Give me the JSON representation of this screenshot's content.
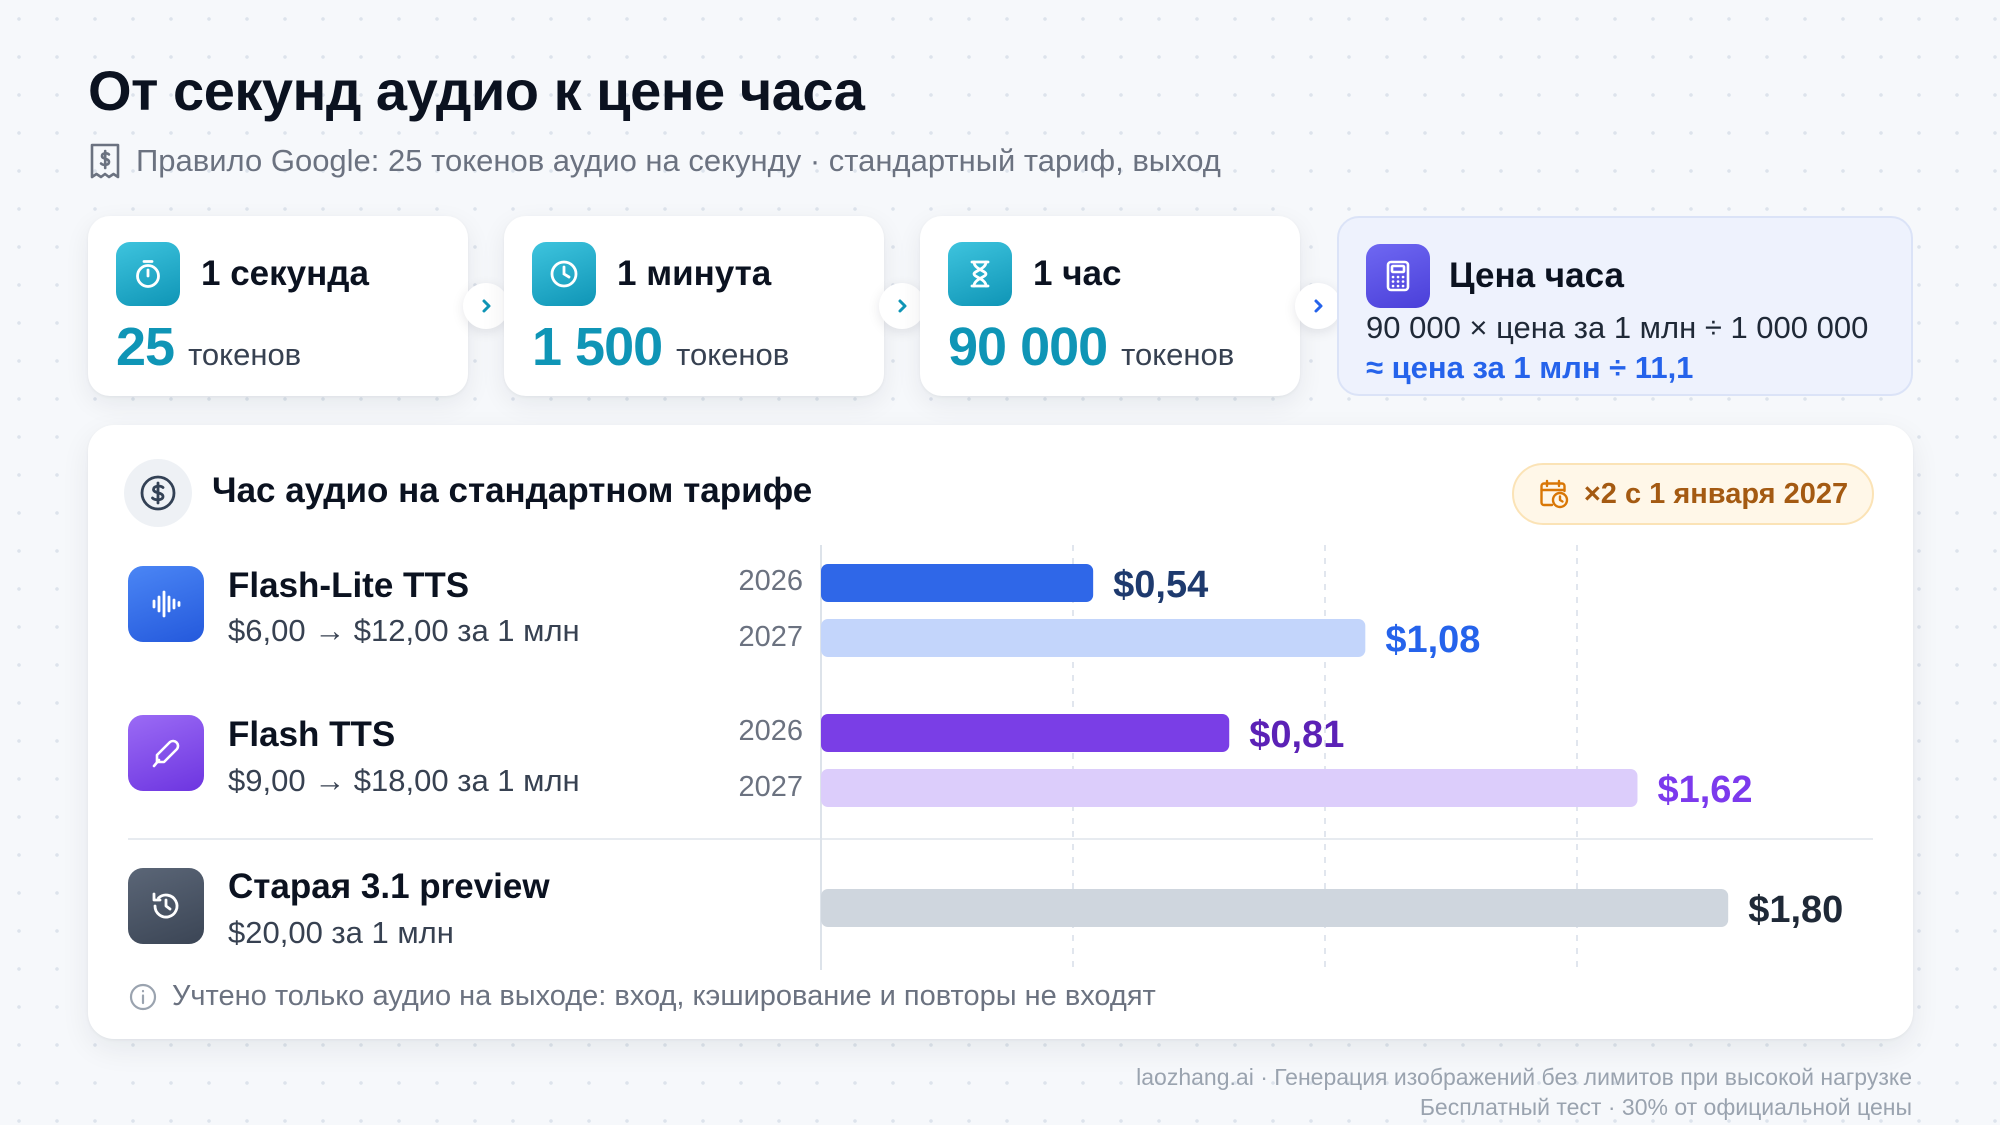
{
  "header": {
    "title": "От секунд аудио к цене часа",
    "subtitle": "Правило Google: 25 токенов аудио на секунду · стандартный тариф, выход",
    "subtitle_icon": "receipt-icon"
  },
  "steps": [
    {
      "icon": "stopwatch-icon",
      "title": "1 секунда",
      "value": "25",
      "unit": "токенов"
    },
    {
      "icon": "clock-icon",
      "title": "1 минута",
      "value": "1 500",
      "unit": "токенов"
    },
    {
      "icon": "hourglass-icon",
      "title": "1 час",
      "value": "90 000",
      "unit": "токенов"
    }
  ],
  "price_card": {
    "icon": "calculator-icon",
    "title": "Цена часа",
    "formula": "90 000 × цена за 1 млн ÷ 1 000 000",
    "approx": "≈ цена за 1 млн ÷ 11,1"
  },
  "panel": {
    "icon": "dollar-coin-icon",
    "title": "Час аудио на стандартном тарифе",
    "badge": "×2 с 1 января 2027",
    "badge_icon": "calendar-clock-icon",
    "footnote": "Учтено только аудио на выходе: вход, кэширование и повторы не входят",
    "footnote_icon": "info-icon"
  },
  "models": [
    {
      "name": "Flash-Lite TTS",
      "price": "$6,00 → $12,00 за 1 млн",
      "icon": "waveform-icon"
    },
    {
      "name": "Flash TTS",
      "price": "$9,00 → $18,00 за 1 млн",
      "icon": "pen-icon"
    },
    {
      "name": "Старая 3.1 preview",
      "price": "$20,00 за 1 млн",
      "icon": "history-icon"
    }
  ],
  "chart_data": {
    "type": "bar",
    "orientation": "horizontal",
    "title": "Час аудио на стандартном тарифе",
    "xlim": [
      0,
      1.8
    ],
    "grid": true,
    "bars": [
      {
        "model": "Flash-Lite TTS",
        "year": "2026",
        "value": 0.54,
        "label": "$0,54",
        "color": "#2f67e8",
        "label_color": "#1e3a6e"
      },
      {
        "model": "Flash-Lite TTS",
        "year": "2027",
        "value": 1.08,
        "label": "$1,08",
        "color": "#c3d5fb",
        "label_color": "#2563eb"
      },
      {
        "model": "Flash TTS",
        "year": "2026",
        "value": 0.81,
        "label": "$0,81",
        "color": "#7a3ee6",
        "label_color": "#5b21b6"
      },
      {
        "model": "Flash TTS",
        "year": "2027",
        "value": 1.62,
        "label": "$1,62",
        "color": "#dccdfb",
        "label_color": "#7c3aed"
      },
      {
        "model": "Старая 3.1 preview",
        "year": "",
        "value": 1.8,
        "label": "$1,80",
        "color": "#cfd6de",
        "label_color": "#1f2937"
      }
    ]
  },
  "brand": {
    "line1": "laozhang.ai · Генерация изображений без лимитов при высокой нагрузке",
    "line2": "Бесплатный тест · 30% от официальной цены"
  }
}
